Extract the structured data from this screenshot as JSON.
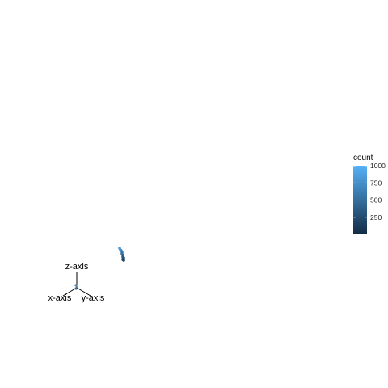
{
  "chart_data": {
    "type": "scatter",
    "title": "",
    "axes": {
      "x": {
        "label": "x-axis"
      },
      "y": {
        "label": "y-axis"
      },
      "z": {
        "label": "z-axis"
      }
    },
    "points": [
      {
        "count": 820
      },
      {
        "count": 760
      },
      {
        "count": 690
      },
      {
        "count": 600
      },
      {
        "count": 520
      },
      {
        "count": 430
      },
      {
        "count": 360
      },
      {
        "count": 300
      },
      {
        "count": 250
      },
      {
        "count": 140
      }
    ],
    "colorbar": {
      "title": "count",
      "range": [
        1,
        1000
      ],
      "ticks": [
        250,
        500,
        750,
        1000
      ],
      "low_color": "#132B43",
      "high_color": "#56B1F7"
    },
    "grid": false,
    "legend_position": "right"
  }
}
